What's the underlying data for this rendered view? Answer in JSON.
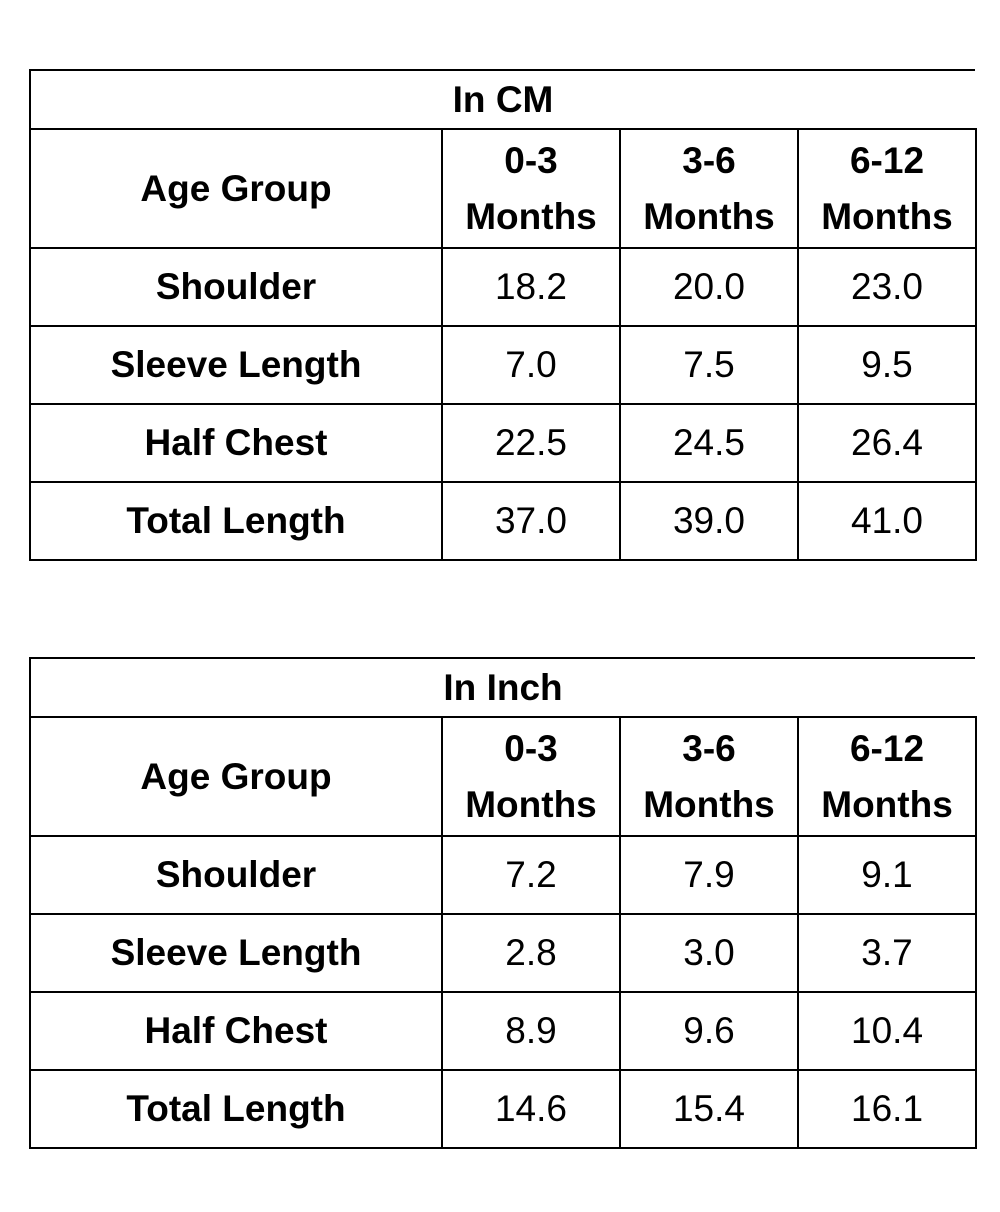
{
  "tables": [
    {
      "title": "In CM",
      "header": {
        "label": "Age Group",
        "columns": [
          {
            "range": "0-3",
            "unit": "Months"
          },
          {
            "range": "3-6",
            "unit": "Months"
          },
          {
            "range": "6-12",
            "unit": "Months"
          }
        ]
      },
      "rows": [
        {
          "label": "Shoulder",
          "values": [
            "18.2",
            "20.0",
            "23.0"
          ]
        },
        {
          "label": "Sleeve Length",
          "values": [
            "7.0",
            "7.5",
            "9.5"
          ]
        },
        {
          "label": "Half Chest",
          "values": [
            "22.5",
            "24.5",
            "26.4"
          ]
        },
        {
          "label": "Total Length",
          "values": [
            "37.0",
            "39.0",
            "41.0"
          ]
        }
      ]
    },
    {
      "title": "In Inch",
      "header": {
        "label": "Age Group",
        "columns": [
          {
            "range": "0-3",
            "unit": "Months"
          },
          {
            "range": "3-6",
            "unit": "Months"
          },
          {
            "range": "6-12",
            "unit": "Months"
          }
        ]
      },
      "rows": [
        {
          "label": "Shoulder",
          "values": [
            "7.2",
            "7.9",
            "9.1"
          ]
        },
        {
          "label": "Sleeve Length",
          "values": [
            "2.8",
            "3.0",
            "3.7"
          ]
        },
        {
          "label": "Half Chest",
          "values": [
            "8.9",
            "9.6",
            "10.4"
          ]
        },
        {
          "label": "Total Length",
          "values": [
            "14.6",
            "15.4",
            "16.1"
          ]
        }
      ]
    }
  ]
}
